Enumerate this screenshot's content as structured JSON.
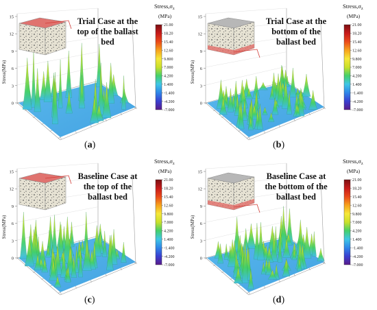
{
  "chart_data": [
    {
      "type": "surface",
      "panel_label": "(a)",
      "case_label_lines": [
        "Trial Case at the",
        "top of the ballast",
        "bed"
      ],
      "highlight_face": "top",
      "peak_pattern": "sparse-tall",
      "ylabel": "Stress(MPa)",
      "zlim": [
        0,
        15
      ],
      "z_ticks": [
        "0",
        "3",
        "6",
        "9",
        "12",
        "15"
      ],
      "colorbar": {
        "title": "Stress,σ",
        "title_sub": "z",
        "unit": "(MPa)",
        "ticks": [
          "21.00",
          "18.20",
          "15.40",
          "12.60",
          "9.800",
          "7.000",
          "4.200",
          "1.400",
          "-1.400",
          "-4.200",
          "-7.000"
        ],
        "range": [
          -7,
          21
        ]
      }
    },
    {
      "type": "surface",
      "panel_label": "(b)",
      "case_label_lines": [
        "Trial Case at the",
        "bottom of the",
        "ballast bed"
      ],
      "highlight_face": "bottom",
      "peak_pattern": "dense-short",
      "ylabel": "Stress(MPa)",
      "zlim": [
        0,
        15
      ],
      "z_ticks": [
        "0",
        "3",
        "6",
        "9",
        "12",
        "15"
      ],
      "colorbar": {
        "title": "Stress,σ",
        "title_sub": "z",
        "unit": "(MPa)",
        "ticks": [
          "21.00",
          "18.20",
          "15.40",
          "12.60",
          "9.800",
          "7.000",
          "4.200",
          "1.400",
          "-1.400",
          "-4.200",
          "-7.000"
        ],
        "range": [
          -7,
          21
        ]
      }
    },
    {
      "type": "surface",
      "panel_label": "(c)",
      "case_label_lines": [
        "Baseline Case at",
        "the top of the",
        "ballast bed"
      ],
      "highlight_face": "top",
      "peak_pattern": "dense-medium",
      "ylabel": "Stress(MPa)",
      "zlim": [
        0,
        15
      ],
      "z_ticks": [
        "0",
        "3",
        "6",
        "9",
        "12",
        "15"
      ],
      "colorbar": {
        "title": "Stress,σ",
        "title_sub": "z",
        "unit": "(MPa)",
        "ticks": [
          "21.00",
          "18.20",
          "15.40",
          "12.60",
          "9.800",
          "7.000",
          "4.200",
          "1.400",
          "-1.400",
          "-4.200",
          "-7.000"
        ],
        "range": [
          -7,
          21
        ]
      }
    },
    {
      "type": "surface",
      "panel_label": "(d)",
      "case_label_lines": [
        "Baseline Case at",
        "the bottom of the",
        "ballast bed"
      ],
      "highlight_face": "bottom",
      "peak_pattern": "dense-medium",
      "ylabel": "Stress(MPa)",
      "zlim": [
        0,
        15
      ],
      "z_ticks": [
        "0",
        "3",
        "6",
        "9",
        "12",
        "15"
      ],
      "colorbar": {
        "title": "Stress,σ",
        "title_sub": "z",
        "unit": "(MPa)",
        "ticks": [
          "21.00",
          "18.20",
          "15.40",
          "12.60",
          "9.800",
          "7.000",
          "4.200",
          "1.400",
          "-1.400",
          "-4.200",
          "-7.000"
        ],
        "range": [
          -7,
          21
        ]
      }
    }
  ],
  "colors": {
    "ramp": [
      "#5a1b8a",
      "#3a3fd0",
      "#2f86e8",
      "#3fc7e6",
      "#44d06a",
      "#c9e02a",
      "#f6e83a",
      "#f7a21c",
      "#ea4a1a",
      "#c71a1a",
      "#7a0f12"
    ],
    "box_fill": "#e8e4d6",
    "box_stroke": "#8a8a8a",
    "highlight": "#e0736f",
    "callout_line": "#d23a34"
  }
}
